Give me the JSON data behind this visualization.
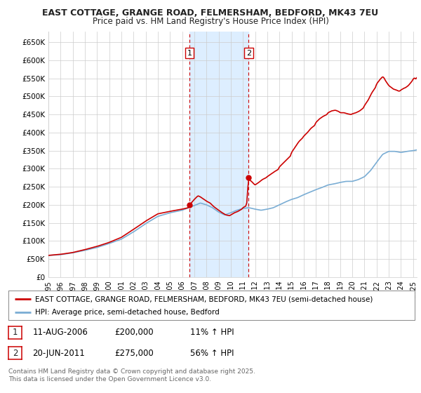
{
  "title1": "EAST COTTAGE, GRANGE ROAD, FELMERSHAM, BEDFORD, MK43 7EU",
  "title2": "Price paid vs. HM Land Registry's House Price Index (HPI)",
  "legend1": "EAST COTTAGE, GRANGE ROAD, FELMERSHAM, BEDFORD, MK43 7EU (semi-detached house)",
  "legend2": "HPI: Average price, semi-detached house, Bedford",
  "sale1_date": "11-AUG-2006",
  "sale1_price": "£200,000",
  "sale1_hpi": "11% ↑ HPI",
  "sale2_date": "20-JUN-2011",
  "sale2_price": "£275,000",
  "sale2_hpi": "56% ↑ HPI",
  "footnote": "Contains HM Land Registry data © Crown copyright and database right 2025.\nThis data is licensed under the Open Government Licence v3.0.",
  "price_line_color": "#cc0000",
  "hpi_line_color": "#7aadd4",
  "sale_dot_color": "#cc0000",
  "highlight_color": "#ddeeff",
  "grid_color": "#cccccc",
  "bg_color": "#ffffff",
  "ylim_min": 0,
  "ylim_max": 680000,
  "yticks": [
    0,
    50000,
    100000,
    150000,
    200000,
    250000,
    300000,
    350000,
    400000,
    450000,
    500000,
    550000,
    600000,
    650000
  ],
  "ytick_labels": [
    "£0",
    "£50K",
    "£100K",
    "£150K",
    "£200K",
    "£250K",
    "£300K",
    "£350K",
    "£400K",
    "£450K",
    "£500K",
    "£550K",
    "£600K",
    "£650K"
  ],
  "sale1_x": 2006.6,
  "sale1_y": 200000,
  "sale2_x": 2011.46,
  "sale2_y": 275000,
  "xlim_min": 1995,
  "xlim_max": 2025.3
}
